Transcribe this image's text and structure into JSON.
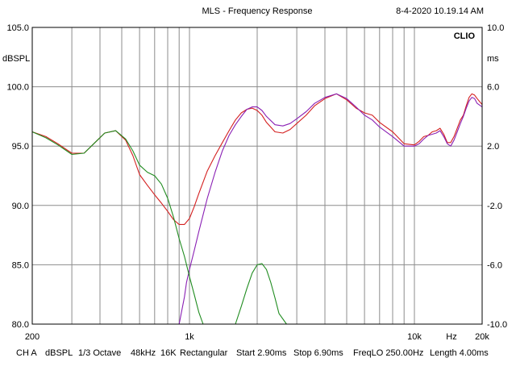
{
  "header": {
    "title": "MLS - Frequency Response",
    "timestamp": "8-4-2020 10.19.14 AM",
    "brand": "CLIO"
  },
  "footer": {
    "items": [
      "CH A",
      "dBSPL",
      "1/3 Octave",
      "48kHz",
      "16K",
      "Rectangular",
      "Start 2.90ms",
      "Stop 6.90ms",
      "FreqLO 250.00Hz",
      "Length 4.00ms"
    ]
  },
  "colors": {
    "grid": "#8c8c8c",
    "frame": "#000000",
    "series": [
      "#d42020",
      "#8a20b4",
      "#208c20"
    ]
  },
  "chart_data": {
    "type": "line",
    "x_scale": "log",
    "xlim": [
      200,
      20000
    ],
    "ylim": [
      80,
      105
    ],
    "ylabel": "dBSPL",
    "ylabel_right": "ms",
    "xlabel": "Hz",
    "grid": true,
    "x_ticks": [
      {
        "value": 200,
        "label": "200"
      },
      {
        "value": 1000,
        "label": "1k"
      },
      {
        "value": 10000,
        "label": "10k"
      },
      {
        "value": 20000,
        "label": "20k"
      }
    ],
    "y_ticks": [
      {
        "value": 80,
        "label": "80.0"
      },
      {
        "value": 85,
        "label": "85.0"
      },
      {
        "value": 90,
        "label": "90.0"
      },
      {
        "value": 95,
        "label": "95.0"
      },
      {
        "value": 100,
        "label": "100.0"
      },
      {
        "value": 105,
        "label": "105.0"
      }
    ],
    "y_ticks_right": [
      "10.0",
      "6.0",
      "2.0",
      "-2.0",
      "-6.0",
      "-10.0"
    ],
    "series": [
      {
        "x": [
          200,
          230,
          260,
          300,
          340,
          380,
          420,
          470,
          520,
          560,
          600,
          650,
          700,
          750,
          800,
          850,
          900,
          950,
          1000,
          1050,
          1100,
          1200,
          1300,
          1400,
          1500,
          1600,
          1700,
          1800,
          1900,
          2000,
          2100,
          2200,
          2400,
          2600,
          2800,
          3000,
          3300,
          3600,
          4000,
          4500,
          5000,
          5500,
          6000,
          6500,
          7000,
          8000,
          9000,
          10000,
          10500,
          11000,
          11500,
          12000,
          12500,
          13000,
          13500,
          14000,
          14500,
          15000,
          15500,
          16000,
          16500,
          17000,
          17500,
          18000,
          18500,
          19000,
          20000
        ],
        "y": [
          96.2,
          95.8,
          95.2,
          94.4,
          94.4,
          95.3,
          96.1,
          96.3,
          95.5,
          94.2,
          92.6,
          91.7,
          90.9,
          90.2,
          89.5,
          88.8,
          88.4,
          88.4,
          88.9,
          89.9,
          91.0,
          92.9,
          94.2,
          95.3,
          96.3,
          97.2,
          97.8,
          98.1,
          98.2,
          98.0,
          97.6,
          97.0,
          96.2,
          96.1,
          96.4,
          96.9,
          97.6,
          98.4,
          99.0,
          99.4,
          98.9,
          98.2,
          97.8,
          97.6,
          97.0,
          96.2,
          95.2,
          95.1,
          95.4,
          95.8,
          95.9,
          96.2,
          96.3,
          96.5,
          96.0,
          95.3,
          95.3,
          95.8,
          96.5,
          97.2,
          97.6,
          98.4,
          99.1,
          99.4,
          99.3,
          99.0,
          98.5
        ]
      },
      {
        "x": [
          200,
          230,
          260,
          300,
          340,
          380,
          420,
          470,
          520,
          560,
          600,
          650,
          700,
          750,
          800,
          850,
          900,
          950,
          970,
          1000,
          1050,
          1100,
          1200,
          1300,
          1400,
          1500,
          1600,
          1700,
          1800,
          1900,
          2000,
          2100,
          2200,
          2400,
          2600,
          2800,
          3000,
          3300,
          3600,
          4000,
          4500,
          5000,
          5500,
          6000,
          6500,
          7000,
          8000,
          9000,
          10000,
          10500,
          11000,
          11500,
          12000,
          12500,
          13000,
          13500,
          14000,
          14500,
          15000,
          15500,
          16000,
          16500,
          17000,
          17500,
          18000,
          18500,
          19000,
          20000
        ],
        "y": [
          80,
          80,
          80,
          80,
          80,
          80,
          80,
          80,
          80,
          80,
          80,
          80,
          80,
          80,
          80,
          80,
          80,
          82.3,
          83.5,
          84.6,
          86.2,
          87.8,
          90.6,
          92.8,
          94.6,
          95.9,
          96.8,
          97.5,
          98.1,
          98.3,
          98.3,
          98.0,
          97.5,
          96.8,
          96.7,
          96.9,
          97.3,
          97.9,
          98.6,
          99.1,
          99.4,
          99.0,
          98.3,
          97.6,
          97.2,
          96.6,
          95.8,
          95.0,
          95.0,
          95.2,
          95.6,
          95.9,
          96.0,
          96.1,
          96.3,
          95.8,
          95.2,
          95.0,
          95.5,
          96.2,
          96.9,
          97.5,
          98.2,
          98.8,
          99.1,
          99.0,
          98.6,
          98.3
        ]
      },
      {
        "x": [
          200,
          230,
          260,
          300,
          340,
          380,
          420,
          470,
          520,
          560,
          600,
          650,
          700,
          750,
          800,
          850,
          900,
          950,
          1000,
          1050,
          1100,
          1150,
          1200,
          1250,
          1300,
          1400,
          1500,
          1600,
          1700,
          1800,
          1900,
          2000,
          2100,
          2200,
          2300,
          2400,
          2500,
          2700,
          20000
        ],
        "y": [
          96.2,
          95.7,
          95.1,
          94.3,
          94.4,
          95.3,
          96.1,
          96.3,
          95.6,
          94.6,
          93.4,
          92.8,
          92.5,
          91.8,
          90.6,
          89.0,
          87.2,
          85.7,
          84.0,
          82.5,
          81.0,
          80.0,
          80,
          80,
          80,
          80,
          80,
          80,
          81.5,
          83.0,
          84.3,
          85.0,
          85.1,
          84.6,
          83.5,
          82.2,
          80.9,
          80,
          80
        ]
      }
    ]
  }
}
